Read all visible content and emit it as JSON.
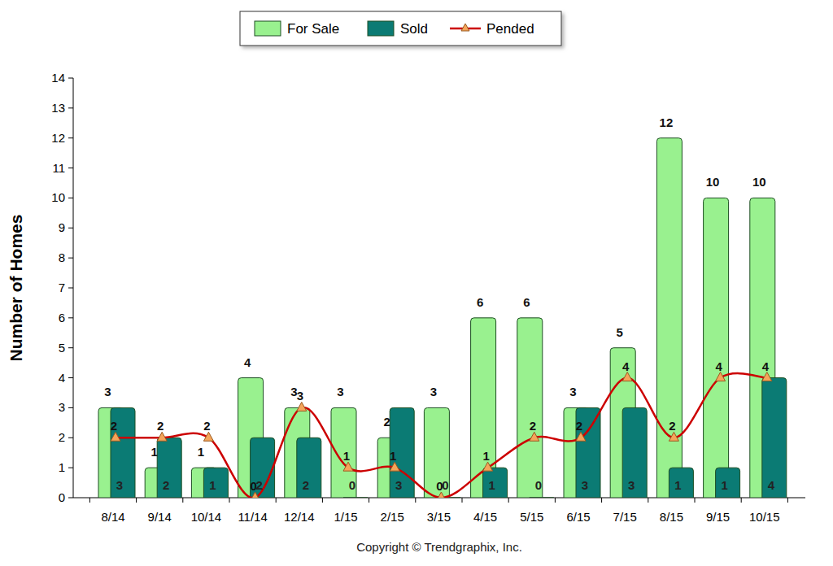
{
  "chart_data": {
    "type": "bar",
    "y_label": "Number of Homes",
    "annotations": [
      "Copyright © Trendgraphix, Inc."
    ],
    "categories": [
      "8/14",
      "9/14",
      "10/14",
      "11/14",
      "12/14",
      "1/15",
      "2/15",
      "3/15",
      "4/15",
      "5/15",
      "6/15",
      "7/15",
      "8/15",
      "9/15",
      "10/15"
    ],
    "series": [
      {
        "name": "For Sale",
        "type": "bar",
        "color": "#99f18f",
        "values": [
          3,
          1,
          1,
          4,
          3,
          3,
          2,
          3,
          6,
          6,
          3,
          5,
          12,
          10,
          10
        ]
      },
      {
        "name": "Sold",
        "type": "bar",
        "color": "#0b7b74",
        "values": [
          3,
          2,
          1,
          2,
          2,
          0,
          3,
          0,
          1,
          0,
          3,
          3,
          1,
          1,
          4
        ]
      },
      {
        "name": "Pended",
        "type": "line",
        "color": "#cc0000",
        "marker": "triangle",
        "line_style": "smooth",
        "values": [
          2,
          2,
          2,
          0,
          3,
          1,
          1,
          0,
          1,
          2,
          2,
          4,
          2,
          4,
          4
        ]
      }
    ],
    "ylim": [
      0,
      14
    ],
    "yticks": [
      0,
      1,
      2,
      3,
      4,
      5,
      6,
      7,
      8,
      9,
      10,
      11,
      12,
      13,
      14
    ],
    "grid": false,
    "legend": "top",
    "data_labels": true
  }
}
